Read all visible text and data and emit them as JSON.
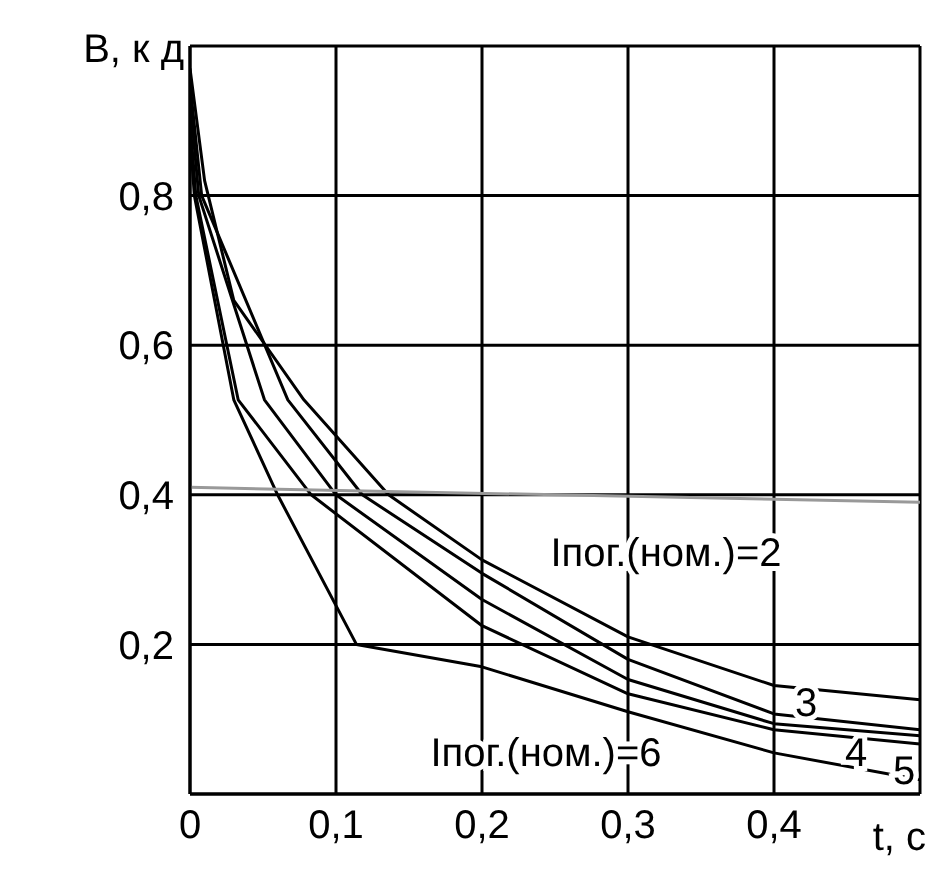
{
  "chart_data": {
    "type": "line",
    "ylabel": "B, к д",
    "xlabel": "t, c",
    "xlim": [
      0,
      0.5
    ],
    "ylim": [
      0,
      1
    ],
    "xticks": [
      {
        "value": 0,
        "label": "0"
      },
      {
        "value": 0.1,
        "label": "0,1"
      },
      {
        "value": 0.2,
        "label": "0,2"
      },
      {
        "value": 0.3,
        "label": "0,3"
      },
      {
        "value": 0.4,
        "label": "0,4"
      },
      {
        "value": 0.5,
        "label": null
      }
    ],
    "yticks": [
      {
        "value": 0,
        "label": null
      },
      {
        "value": 0.2,
        "label": "0,2"
      },
      {
        "value": 0.4,
        "label": "0,4"
      },
      {
        "value": 0.6,
        "label": "0,6"
      },
      {
        "value": 0.8,
        "label": "0,8"
      },
      {
        "value": 1,
        "label": null
      }
    ],
    "grid": true,
    "legend": false,
    "marker": "none",
    "line_style": "solid",
    "series": [
      {
        "color": "#999999",
        "x": [
          0,
          0.5
        ],
        "values": [
          0.41,
          0.39
        ]
      },
      {
        "name": "Iпог.(ном.)=2",
        "color": "#000000",
        "x": [
          0,
          0.01,
          0.03,
          0.078,
          0.136,
          0.2,
          0.3,
          0.4,
          0.5
        ],
        "values": [
          0.97,
          0.82,
          0.66,
          0.527,
          0.4,
          0.313,
          0.21,
          0.145,
          0.126
        ]
      },
      {
        "name": "3",
        "color": "#000000",
        "x": [
          0,
          0.008,
          0.067,
          0.118,
          0.2,
          0.3,
          0.4,
          0.5
        ],
        "values": [
          0.95,
          0.8,
          0.527,
          0.4,
          0.295,
          0.18,
          0.107,
          0.086
        ]
      },
      {
        "name": "4",
        "color": "#000000",
        "x": [
          0,
          0.006,
          0.051,
          0.1,
          0.2,
          0.3,
          0.4,
          0.5
        ],
        "values": [
          0.93,
          0.8,
          0.527,
          0.4,
          0.26,
          0.153,
          0.094,
          0.078
        ]
      },
      {
        "name": "5",
        "color": "#000000",
        "x": [
          0,
          0.004,
          0.033,
          0.083,
          0.2,
          0.3,
          0.4,
          0.5
        ],
        "values": [
          0.9,
          0.8,
          0.527,
          0.4,
          0.225,
          0.134,
          0.086,
          0.067
        ]
      },
      {
        "name": "Iпог.(ном.)=6",
        "color": "#000000",
        "x": [
          0,
          0.003,
          0.03,
          0.06,
          0.114,
          0.2,
          0.3,
          0.4,
          0.5
        ],
        "values": [
          0.88,
          0.8,
          0.527,
          0.4,
          0.2,
          0.17,
          0.11,
          0.055,
          0.019
        ]
      }
    ]
  }
}
